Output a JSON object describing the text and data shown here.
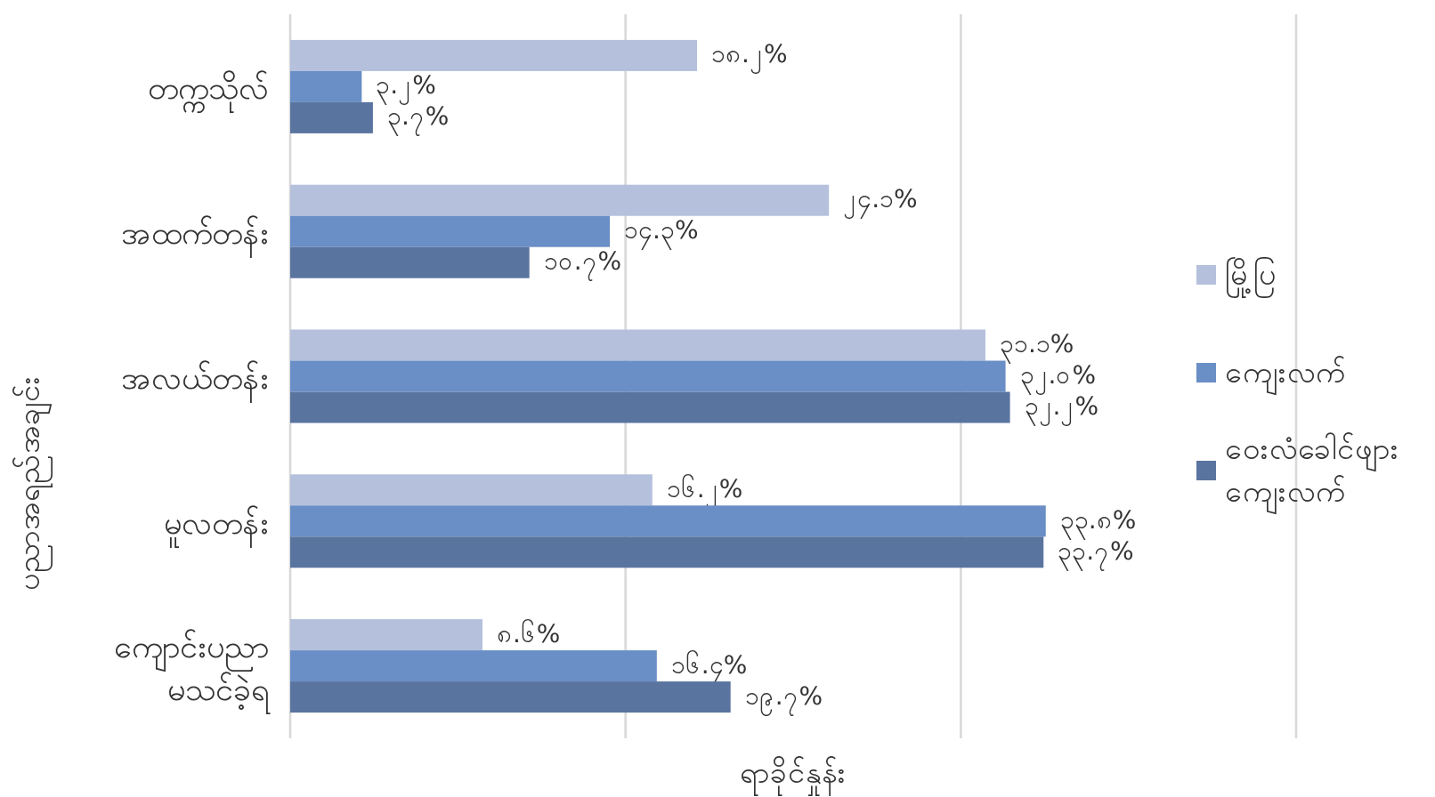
{
  "chart_data": {
    "type": "bar",
    "orientation": "horizontal",
    "xlabel": "ရာခိုင်နှုန်း",
    "ylabel": "ပညာအရည်အချင်း",
    "categories": [
      "တက္ကသိုလ်",
      "အထက်တန်း",
      "အလယ်တန်း",
      "မူလတန်း",
      "ကျောင်းပညာ မသင်ခဲ့ရ"
    ],
    "series": [
      {
        "name": "မြို့ပြ",
        "color": "#b4c0dc",
        "values": [
          18.2,
          24.1,
          31.1,
          16.2,
          8.6
        ],
        "value_labels": [
          "၁၈.၂%",
          "၂၄.၁%",
          "၃၁.၁%",
          "၁၆.၂%",
          "၈.၆%"
        ]
      },
      {
        "name": "ကျေးလက်",
        "color": "#6a8ec6",
        "values": [
          3.2,
          14.3,
          32.0,
          33.8,
          16.4
        ],
        "value_labels": [
          "၃.၂%",
          "၁၄.၃%",
          "၃၂.၀%",
          "၃၃.၈%",
          "၁၆.၄%"
        ]
      },
      {
        "name": "ဝေးလံခေါင်ဖျား ကျေးလက်",
        "color": "#5a74a0",
        "values": [
          3.7,
          10.7,
          32.2,
          33.7,
          19.7
        ],
        "value_labels": [
          "၃.၇%",
          "၁၀.၇%",
          "၃၂.၂%",
          "၃၃.၇%",
          "၁၉.၇%"
        ]
      }
    ],
    "xlim": [
      0,
      45
    ],
    "xticks": [
      {
        "value": 0,
        "label": null
      },
      {
        "value": 15,
        "label": null
      },
      {
        "value": 30,
        "label": null
      },
      {
        "value": 45,
        "label": null
      }
    ],
    "grid": "x",
    "legend": "right"
  }
}
